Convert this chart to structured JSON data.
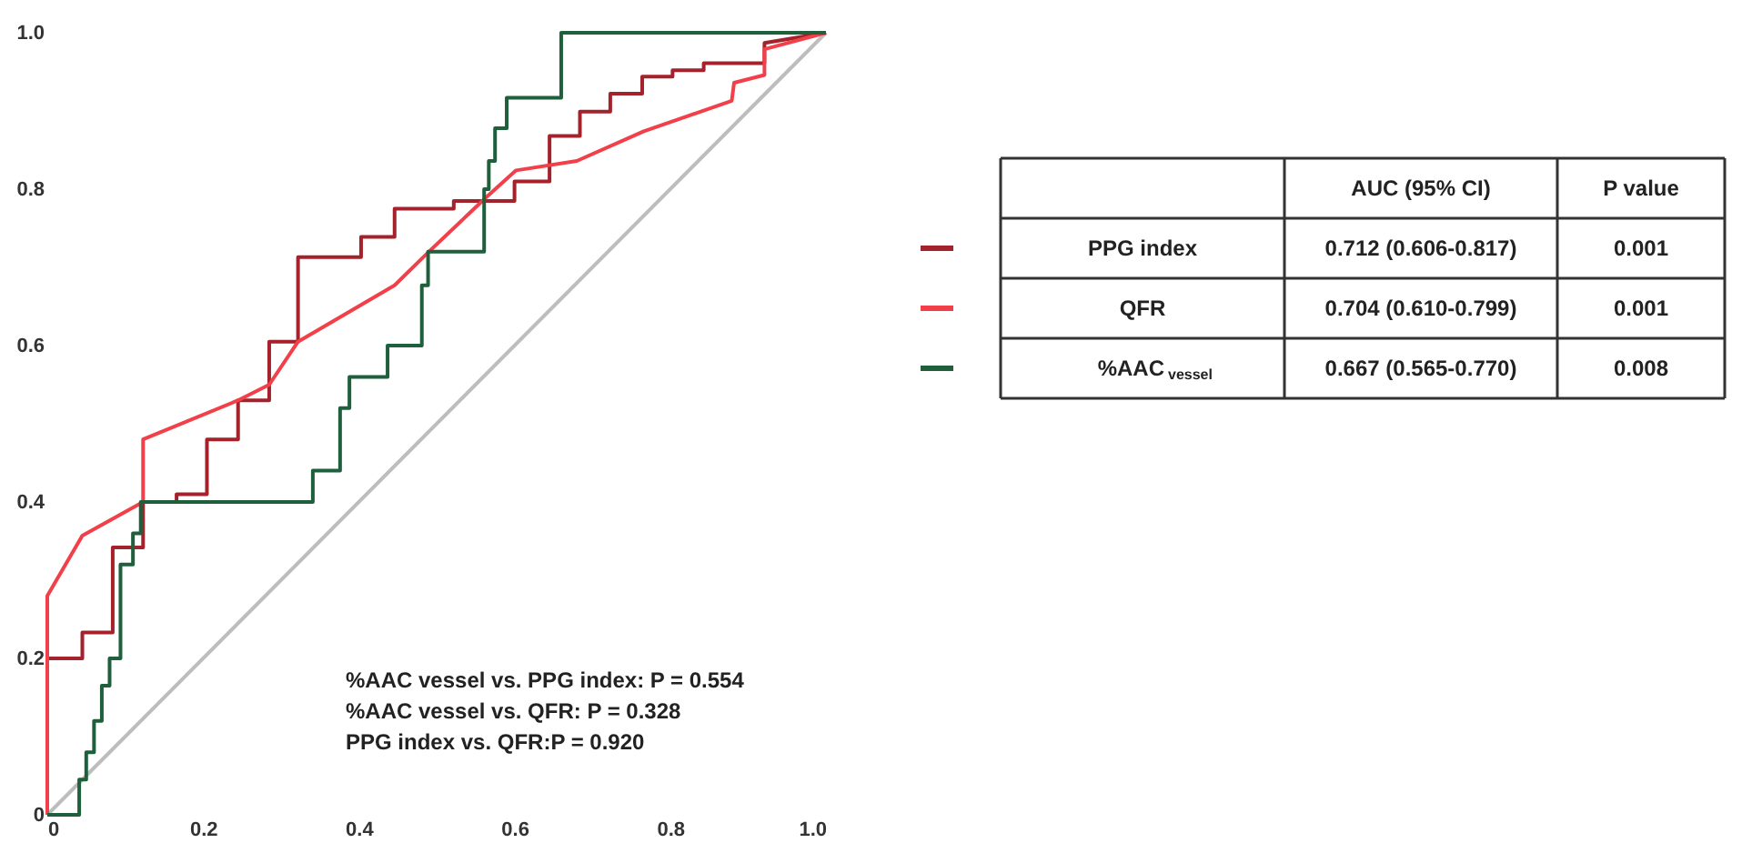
{
  "chart_data": {
    "type": "line",
    "xlim": [
      0,
      1
    ],
    "ylim": [
      0,
      1
    ],
    "xticks": [
      0,
      0.2,
      0.4,
      0.6,
      0.8,
      {
        "value": 1,
        "label": "1.0"
      }
    ],
    "yticks": [
      0,
      0.2,
      0.4,
      0.6,
      0.8,
      {
        "value": 1,
        "label": "1.0"
      }
    ],
    "grid": false,
    "legend": "right",
    "series": [
      {
        "name": "PPG index",
        "color": "#a3222c",
        "x": [
          0,
          0,
          0.045,
          0.045,
          0.084,
          0.084,
          0.123,
          0.123,
          0.166,
          0.166,
          0.205,
          0.205,
          0.245,
          0.245,
          0.285,
          0.285,
          0.322,
          0.322,
          0.403,
          0.403,
          0.446,
          0.446,
          0.522,
          0.522,
          0.6,
          0.6,
          0.645,
          0.645,
          0.684,
          0.684,
          0.723,
          0.723,
          0.764,
          0.764,
          0.803,
          0.803,
          0.843,
          0.843,
          0.921,
          0.921,
          1
        ],
        "values": [
          0,
          0.2,
          0.2,
          0.233,
          0.233,
          0.342,
          0.342,
          0.4,
          0.4,
          0.41,
          0.41,
          0.48,
          0.48,
          0.53,
          0.53,
          0.605,
          0.605,
          0.713,
          0.713,
          0.739,
          0.739,
          0.775,
          0.775,
          0.785,
          0.785,
          0.81,
          0.81,
          0.868,
          0.868,
          0.899,
          0.899,
          0.922,
          0.922,
          0.944,
          0.944,
          0.952,
          0.952,
          0.961,
          0.961,
          0.987,
          1
        ]
      },
      {
        "name": "QFR",
        "color": "#f2404a",
        "x": [
          0,
          0,
          0.045,
          0.123,
          0.123,
          0.245,
          0.285,
          0.322,
          0.446,
          0.489,
          0.563,
          0.602,
          0.68,
          0.766,
          0.879,
          0.882,
          0.921,
          0.921,
          1
        ],
        "values": [
          0,
          0.28,
          0.357,
          0.4,
          0.48,
          0.53,
          0.55,
          0.605,
          0.677,
          0.719,
          0.789,
          0.824,
          0.836,
          0.874,
          0.913,
          0.936,
          0.946,
          0.979,
          1
        ]
      },
      {
        "name": "%AAC$_{vessel}$",
        "color": "#1f5f3c",
        "x": [
          0,
          0.041,
          0.041,
          0.05,
          0.05,
          0.06,
          0.06,
          0.07,
          0.07,
          0.08,
          0.08,
          0.094,
          0.094,
          0.11,
          0.11,
          0.12,
          0.12,
          0.341,
          0.341,
          0.376,
          0.376,
          0.388,
          0.388,
          0.437,
          0.437,
          0.481,
          0.481,
          0.489,
          0.489,
          0.561,
          0.561,
          0.567,
          0.567,
          0.575,
          0.575,
          0.59,
          0.59,
          0.66,
          0.66,
          1
        ],
        "values": [
          0,
          0,
          0.045,
          0.045,
          0.08,
          0.08,
          0.12,
          0.12,
          0.165,
          0.165,
          0.2,
          0.2,
          0.32,
          0.32,
          0.36,
          0.36,
          0.4,
          0.4,
          0.44,
          0.44,
          0.52,
          0.52,
          0.56,
          0.56,
          0.6,
          0.6,
          0.677,
          0.677,
          0.72,
          0.72,
          0.8,
          0.8,
          0.836,
          0.836,
          0.878,
          0.878,
          0.917,
          0.917,
          1,
          1
        ]
      },
      {
        "type": "line",
        "color": "#bdbdbd",
        "x": [
          0,
          1
        ],
        "values": [
          0,
          1
        ]
      }
    ],
    "annotations": [
      "%AAC vessel vs. PPG index: P = 0.554",
      "%AAC vessel vs. QFR: P = 0.328",
      "PPG index vs. QFR:P = 0.920",
      "AUC (95% CI)",
      "P value",
      "0.712 (0.606-0.817)",
      "0.001",
      "0.704 (0.610-0.799)",
      "0.001",
      "0.667 (0.565-0.770)",
      "0.008"
    ]
  }
}
